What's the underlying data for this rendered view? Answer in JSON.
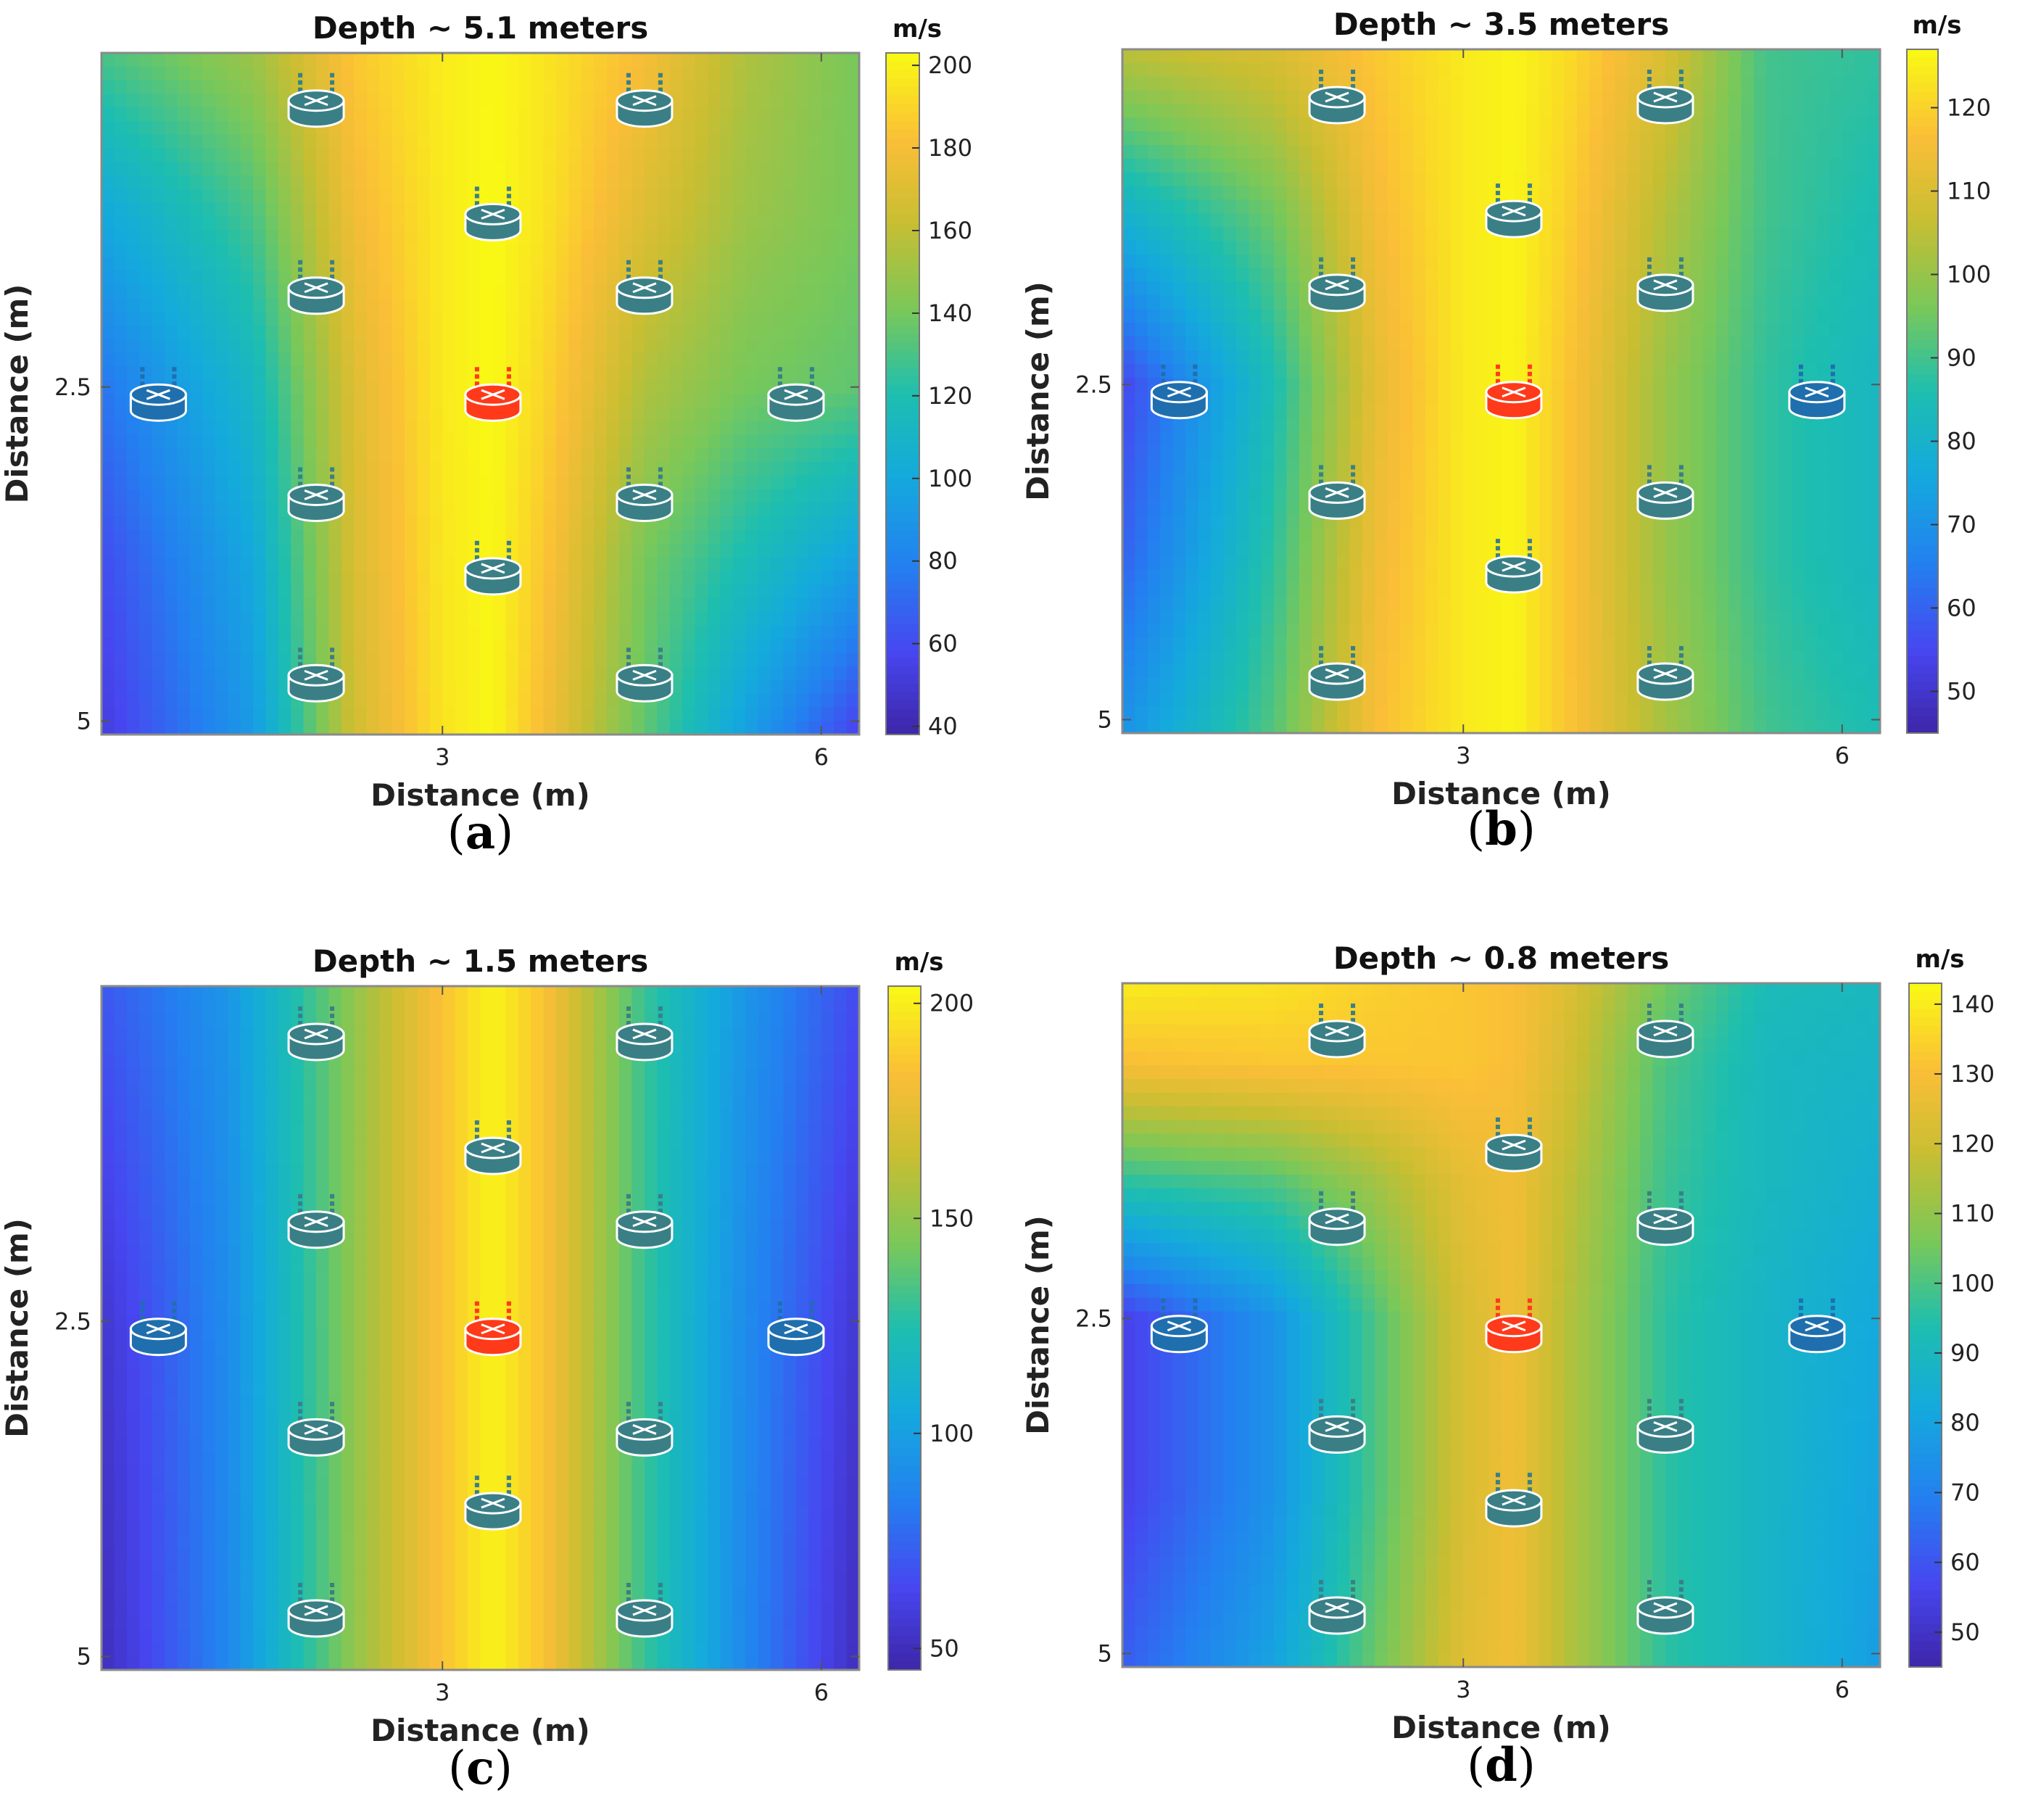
{
  "colors": {
    "node_normal": "#3a7f86",
    "node_blue": "#1f6fae",
    "node_center": "#ff3a1a",
    "node_outline": "#ffffff"
  },
  "chart_data": [
    {
      "type": "heatmap",
      "panel_label": "a",
      "title": "Depth ~ 5.1 meters",
      "xlabel": "Distance (m)",
      "ylabel": "Distance (m)",
      "xlim": [
        0.3,
        6.3
      ],
      "ylim": [
        0.0,
        5.1
      ],
      "y_inverted": true,
      "xticks": [
        "3",
        "6"
      ],
      "xtick_values": [
        3,
        6
      ],
      "yticks": [
        "2.5",
        "5"
      ],
      "ytick_values": [
        2.5,
        5
      ],
      "colorbar": {
        "unit": "m/s",
        "min": 38,
        "max": 203,
        "ticks": [
          40,
          60,
          80,
          100,
          120,
          140,
          160,
          180,
          200
        ]
      },
      "field": {
        "grid_x": [
          0.3,
          1.5,
          2.3,
          3.0,
          3.4,
          3.8,
          4.6,
          5.4,
          6.3
        ],
        "grid_y": [
          0.0,
          1.2,
          2.5,
          3.8,
          5.1
        ],
        "values": [
          [
            130,
            150,
            185,
            198,
            202,
            196,
            180,
            155,
            140
          ],
          [
            100,
            130,
            178,
            197,
            203,
            195,
            170,
            150,
            140
          ],
          [
            75,
            112,
            170,
            197,
            203,
            190,
            155,
            140,
            135
          ],
          [
            60,
            100,
            168,
            196,
            202,
            185,
            140,
            118,
            95
          ],
          [
            52,
            92,
            165,
            195,
            202,
            180,
            135,
            95,
            55
          ]
        ]
      },
      "nodes": [
        {
          "x": 2.0,
          "y": 0.4,
          "kind": "normal"
        },
        {
          "x": 4.6,
          "y": 0.4,
          "kind": "normal"
        },
        {
          "x": 3.4,
          "y": 1.25,
          "kind": "normal"
        },
        {
          "x": 2.0,
          "y": 1.8,
          "kind": "normal"
        },
        {
          "x": 4.6,
          "y": 1.8,
          "kind": "normal"
        },
        {
          "x": 0.75,
          "y": 2.6,
          "kind": "blue"
        },
        {
          "x": 3.4,
          "y": 2.6,
          "kind": "center"
        },
        {
          "x": 5.8,
          "y": 2.6,
          "kind": "normal"
        },
        {
          "x": 2.0,
          "y": 3.35,
          "kind": "normal"
        },
        {
          "x": 4.6,
          "y": 3.35,
          "kind": "normal"
        },
        {
          "x": 3.4,
          "y": 3.9,
          "kind": "normal"
        },
        {
          "x": 2.0,
          "y": 4.7,
          "kind": "normal"
        },
        {
          "x": 4.6,
          "y": 4.7,
          "kind": "normal"
        }
      ]
    },
    {
      "type": "heatmap",
      "panel_label": "b",
      "title": "Depth ~ 3.5 meters",
      "xlabel": "Distance (m)",
      "ylabel": "Distance (m)",
      "xlim": [
        0.3,
        6.3
      ],
      "ylim": [
        0.0,
        5.1
      ],
      "y_inverted": true,
      "xticks": [
        "3",
        "6"
      ],
      "xtick_values": [
        3,
        6
      ],
      "yticks": [
        "2.5",
        "5"
      ],
      "ytick_values": [
        2.5,
        5
      ],
      "colorbar": {
        "unit": "m/s",
        "min": 45,
        "max": 127,
        "ticks": [
          50,
          60,
          70,
          80,
          90,
          100,
          110,
          120
        ]
      },
      "field": {
        "grid_x": [
          0.3,
          1.5,
          2.3,
          3.0,
          3.4,
          3.8,
          4.6,
          5.4,
          6.3
        ],
        "grid_y": [
          0.0,
          1.2,
          2.5,
          3.8,
          5.1
        ],
        "values": [
          [
            105,
            110,
            118,
            124,
            126,
            122,
            110,
            90,
            88
          ],
          [
            80,
            95,
            115,
            124,
            126,
            120,
            104,
            90,
            85
          ],
          [
            55,
            85,
            112,
            124,
            126,
            118,
            100,
            88,
            82
          ],
          [
            60,
            88,
            114,
            124,
            126,
            118,
            100,
            88,
            82
          ],
          [
            70,
            92,
            116,
            124,
            126,
            118,
            102,
            90,
            85
          ]
        ]
      },
      "nodes": [
        {
          "x": 2.0,
          "y": 0.4,
          "kind": "normal"
        },
        {
          "x": 4.6,
          "y": 0.4,
          "kind": "normal"
        },
        {
          "x": 3.4,
          "y": 1.25,
          "kind": "normal"
        },
        {
          "x": 2.0,
          "y": 1.8,
          "kind": "normal"
        },
        {
          "x": 4.6,
          "y": 1.8,
          "kind": "normal"
        },
        {
          "x": 0.75,
          "y": 2.6,
          "kind": "blue"
        },
        {
          "x": 3.4,
          "y": 2.6,
          "kind": "center"
        },
        {
          "x": 5.8,
          "y": 2.6,
          "kind": "blue"
        },
        {
          "x": 2.0,
          "y": 3.35,
          "kind": "normal"
        },
        {
          "x": 4.6,
          "y": 3.35,
          "kind": "normal"
        },
        {
          "x": 3.4,
          "y": 3.9,
          "kind": "normal"
        },
        {
          "x": 2.0,
          "y": 4.7,
          "kind": "normal"
        },
        {
          "x": 4.6,
          "y": 4.7,
          "kind": "normal"
        }
      ]
    },
    {
      "type": "heatmap",
      "panel_label": "c",
      "title": "Depth ~ 1.5 meters",
      "xlabel": "Distance (m)",
      "ylabel": "Distance (m)",
      "xlim": [
        0.3,
        6.3
      ],
      "ylim": [
        0.0,
        5.1
      ],
      "y_inverted": true,
      "xticks": [
        "3",
        "6"
      ],
      "xtick_values": [
        3,
        6
      ],
      "yticks": [
        "2.5",
        "5"
      ],
      "ytick_values": [
        2.5,
        5
      ],
      "colorbar": {
        "unit": "m/s",
        "min": 45,
        "max": 204,
        "ticks": [
          50,
          100,
          150,
          200
        ]
      },
      "field": {
        "grid_x": [
          0.3,
          1.3,
          2.3,
          3.0,
          3.4,
          3.8,
          4.6,
          5.4,
          6.3
        ],
        "grid_y": [
          0.0,
          2.5,
          5.1
        ],
        "values": [
          [
            70,
            95,
            150,
            185,
            202,
            185,
            130,
            95,
            65
          ],
          [
            55,
            90,
            150,
            185,
            202,
            185,
            130,
            90,
            55
          ],
          [
            50,
            88,
            150,
            185,
            202,
            185,
            130,
            88,
            50
          ]
        ]
      },
      "nodes": [
        {
          "x": 2.0,
          "y": 0.4,
          "kind": "normal"
        },
        {
          "x": 4.6,
          "y": 0.4,
          "kind": "normal"
        },
        {
          "x": 3.4,
          "y": 1.25,
          "kind": "normal"
        },
        {
          "x": 2.0,
          "y": 1.8,
          "kind": "normal"
        },
        {
          "x": 4.6,
          "y": 1.8,
          "kind": "normal"
        },
        {
          "x": 0.75,
          "y": 2.6,
          "kind": "blue"
        },
        {
          "x": 3.4,
          "y": 2.6,
          "kind": "center"
        },
        {
          "x": 5.8,
          "y": 2.6,
          "kind": "blue"
        },
        {
          "x": 2.0,
          "y": 3.35,
          "kind": "normal"
        },
        {
          "x": 4.6,
          "y": 3.35,
          "kind": "normal"
        },
        {
          "x": 3.4,
          "y": 3.9,
          "kind": "normal"
        },
        {
          "x": 2.0,
          "y": 4.7,
          "kind": "normal"
        },
        {
          "x": 4.6,
          "y": 4.7,
          "kind": "normal"
        }
      ]
    },
    {
      "type": "heatmap",
      "panel_label": "d",
      "title": "Depth ~ 0.8 meters",
      "xlabel": "Distance (m)",
      "ylabel": "Distance (m)",
      "xlim": [
        0.3,
        6.3
      ],
      "ylim": [
        0.0,
        5.1
      ],
      "y_inverted": true,
      "xticks": [
        "3",
        "6"
      ],
      "xtick_values": [
        3,
        6
      ],
      "yticks": [
        "2.5",
        "5"
      ],
      "ytick_values": [
        2.5,
        5
      ],
      "colorbar": {
        "unit": "m/s",
        "min": 45,
        "max": 143,
        "ticks": [
          50,
          60,
          70,
          80,
          90,
          100,
          110,
          120,
          130,
          140
        ]
      },
      "field": {
        "grid_x": [
          0.3,
          1.5,
          2.3,
          3.0,
          3.4,
          3.8,
          4.6,
          5.4,
          6.3
        ],
        "grid_y": [
          0.0,
          0.6,
          1.5,
          2.5,
          3.8,
          5.1
        ],
        "values": [
          [
            140,
            138,
            134,
            132,
            130,
            124,
            105,
            92,
            90
          ],
          [
            130,
            132,
            132,
            132,
            130,
            122,
            100,
            90,
            88
          ],
          [
            95,
            100,
            112,
            125,
            128,
            118,
            98,
            90,
            85
          ],
          [
            55,
            75,
            100,
            122,
            128,
            116,
            96,
            88,
            82
          ],
          [
            55,
            75,
            100,
            122,
            128,
            116,
            96,
            88,
            80
          ],
          [
            62,
            80,
            104,
            124,
            128,
            116,
            96,
            88,
            78
          ]
        ]
      },
      "nodes": [
        {
          "x": 2.0,
          "y": 0.4,
          "kind": "normal"
        },
        {
          "x": 4.6,
          "y": 0.4,
          "kind": "normal"
        },
        {
          "x": 3.4,
          "y": 1.25,
          "kind": "normal"
        },
        {
          "x": 2.0,
          "y": 1.8,
          "kind": "normal"
        },
        {
          "x": 4.6,
          "y": 1.8,
          "kind": "normal"
        },
        {
          "x": 0.75,
          "y": 2.6,
          "kind": "blue"
        },
        {
          "x": 3.4,
          "y": 2.6,
          "kind": "center"
        },
        {
          "x": 5.8,
          "y": 2.6,
          "kind": "blue"
        },
        {
          "x": 2.0,
          "y": 3.35,
          "kind": "normal"
        },
        {
          "x": 4.6,
          "y": 3.35,
          "kind": "normal"
        },
        {
          "x": 3.4,
          "y": 3.9,
          "kind": "normal"
        },
        {
          "x": 2.0,
          "y": 4.7,
          "kind": "normal"
        },
        {
          "x": 4.6,
          "y": 4.7,
          "kind": "normal"
        }
      ]
    }
  ]
}
